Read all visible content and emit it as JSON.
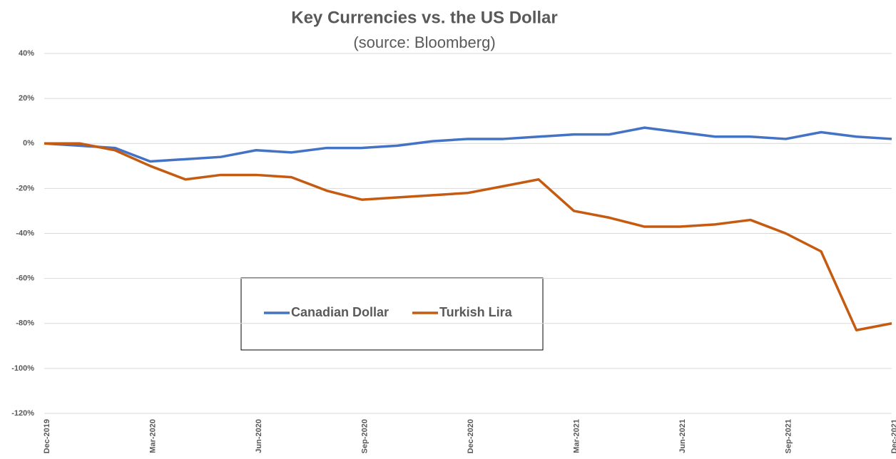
{
  "chart_data": {
    "type": "line",
    "title": "Key Currencies vs. the US Dollar",
    "subtitle": "(source: Bloomberg)",
    "categories": [
      "Dec-2019",
      null,
      null,
      "Mar-2020",
      null,
      null,
      "Jun-2020",
      null,
      null,
      "Sep-2020",
      null,
      null,
      "Dec-2020",
      null,
      null,
      "Mar-2021",
      null,
      null,
      "Jun-2021",
      null,
      null,
      "Sep-2021",
      null,
      null,
      "Dec-2021"
    ],
    "series": [
      {
        "name": "Canadian Dollar",
        "color": "#4472c4",
        "values": [
          0,
          -1,
          -2,
          -8,
          -7,
          -6,
          -3,
          -4,
          -2,
          -2,
          -1,
          1,
          2,
          2,
          3,
          4,
          4,
          7,
          5,
          3,
          3,
          2,
          5,
          3,
          2
        ]
      },
      {
        "name": "Turkish Lira",
        "color": "#c55a11",
        "values": [
          0,
          0,
          -3,
          -10,
          -16,
          -14,
          -14,
          -15,
          -21,
          -25,
          -24,
          -23,
          -22,
          -19,
          -16,
          -30,
          -33,
          -37,
          -37,
          -36,
          -34,
          -40,
          -48,
          -83,
          -80
        ]
      }
    ],
    "ylim": [
      -120,
      40
    ],
    "yticks": [
      {
        "value": -120,
        "label": "-120%"
      },
      {
        "value": -100,
        "label": "-100%"
      },
      {
        "value": -80,
        "label": "-80%"
      },
      {
        "value": -60,
        "label": "-60%"
      },
      {
        "value": -40,
        "label": "-40%"
      },
      {
        "value": -20,
        "label": "-20%"
      },
      {
        "value": 0,
        "label": "0%"
      },
      {
        "value": 20,
        "label": "20%"
      },
      {
        "value": 40,
        "label": "40%"
      }
    ],
    "grid": true
  }
}
